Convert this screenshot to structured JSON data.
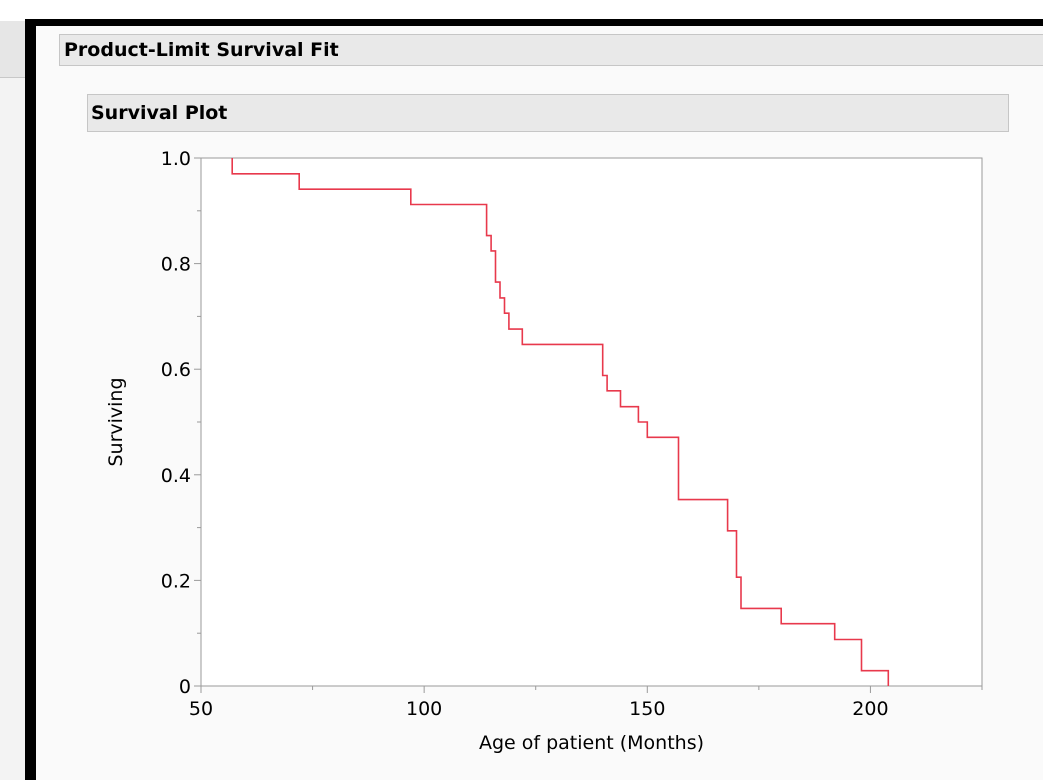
{
  "report": {
    "header": "Product-Limit Survival Fit",
    "subheader": "Survival Plot"
  },
  "colors": {
    "curve": "#e8394c",
    "axis": "#9a9a9a",
    "panel_bg": "#fafafa",
    "header_bg": "#e9e9e9",
    "frame": "#000000"
  },
  "chart_data": {
    "type": "line",
    "step": true,
    "title": "Survival Plot",
    "xlabel": "Age of patient (Months)",
    "ylabel": "Surviving",
    "xlim": [
      50,
      225
    ],
    "ylim": [
      0,
      1
    ],
    "x_ticks": [
      50,
      100,
      150,
      200
    ],
    "x_minor_ticks": [
      75,
      125,
      175,
      225
    ],
    "y_ticks": [
      0,
      0.2,
      0.4,
      0.6,
      0.8,
      1.0
    ],
    "y_tick_labels": [
      "0",
      "0.2",
      "0.4",
      "0.6",
      "0.8",
      "1.0"
    ],
    "y_minor_ticks": [
      0.1,
      0.3,
      0.5,
      0.7,
      0.9
    ],
    "grid": false,
    "legend": "none",
    "series": [
      {
        "x": [
          57,
          72,
          97,
          114,
          115,
          116,
          117,
          118,
          119,
          120,
          122,
          132,
          140,
          141,
          142,
          144,
          148,
          150,
          152,
          157,
          168,
          170,
          171,
          180,
          192,
          198,
          204
        ],
        "y": [
          0.97,
          0.941,
          0.912,
          0.853,
          0.824,
          0.765,
          0.735,
          0.706,
          0.676,
          0.676,
          0.647,
          0.647,
          0.588,
          0.559,
          0.559,
          0.529,
          0.5,
          0.471,
          0.471,
          0.353,
          0.294,
          0.206,
          0.147,
          0.118,
          0.088,
          0.029,
          0.0
        ]
      }
    ]
  }
}
